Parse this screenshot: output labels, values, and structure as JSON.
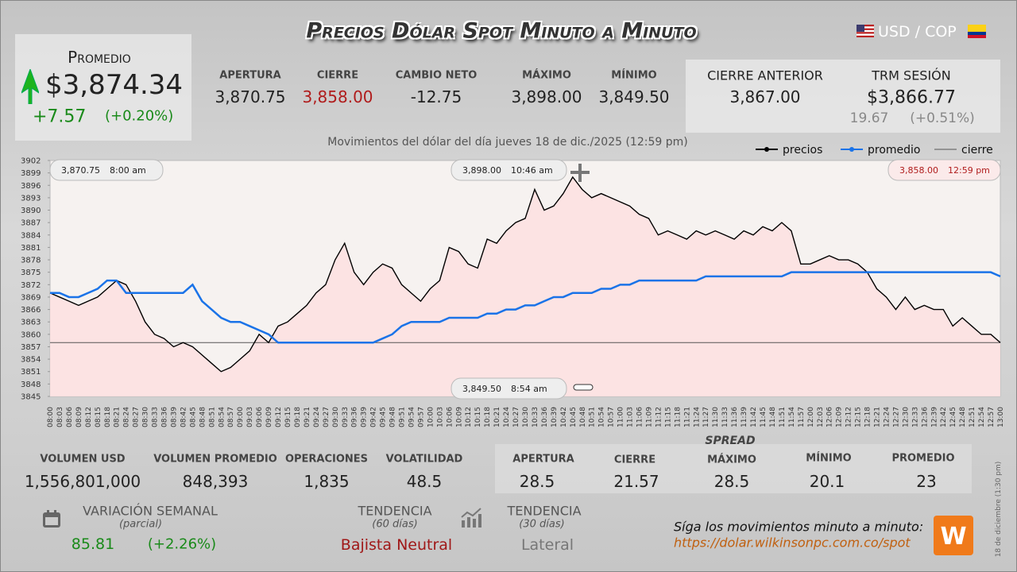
{
  "header": {
    "title": "Precios Dólar Spot Minuto a Minuto",
    "pair": "USD / COP"
  },
  "promedio": {
    "label": "Promedio",
    "value": "$3,874.34",
    "change": "+7.57",
    "pct": "(+0.20%)"
  },
  "stats": [
    {
      "label": "APERTURA",
      "value": "3,870.75"
    },
    {
      "label": "CIERRE",
      "value": "3,858.00"
    },
    {
      "label": "CAMBIO NETO",
      "value": "-12.75"
    },
    {
      "label": "MÁXIMO",
      "value": "3,898.00"
    },
    {
      "label": "MÍNIMO",
      "value": "3,849.50"
    }
  ],
  "cierre_anterior": {
    "label": "CIERRE ANTERIOR",
    "value": "3,867.00"
  },
  "trm": {
    "label": "TRM SESIÓN",
    "value": "$3,866.77",
    "change": "19.67",
    "pct": "(+0.51%)"
  },
  "chart_data": {
    "type": "line",
    "subtitle": "Movimientos del dólar del día jueves 18 de dic./2025 (12:59 pm)",
    "legend": "top-right",
    "categories": [
      "08:00",
      "08:03",
      "08:06",
      "08:09",
      "08:12",
      "08:15",
      "08:18",
      "08:21",
      "08:24",
      "08:27",
      "08:30",
      "08:33",
      "08:36",
      "08:39",
      "08:42",
      "08:45",
      "08:48",
      "08:51",
      "08:54",
      "08:57",
      "09:00",
      "09:03",
      "09:06",
      "09:09",
      "09:12",
      "09:15",
      "09:18",
      "09:21",
      "09:24",
      "09:27",
      "09:30",
      "09:33",
      "09:36",
      "09:39",
      "09:42",
      "09:45",
      "09:48",
      "09:51",
      "09:54",
      "09:57",
      "10:00",
      "10:03",
      "10:06",
      "10:09",
      "10:12",
      "10:15",
      "10:18",
      "10:21",
      "10:24",
      "10:27",
      "10:30",
      "10:33",
      "10:36",
      "10:39",
      "10:42",
      "10:45",
      "10:48",
      "10:51",
      "10:54",
      "10:57",
      "11:00",
      "11:03",
      "11:06",
      "11:09",
      "11:12",
      "11:15",
      "11:18",
      "11:21",
      "11:24",
      "11:27",
      "11:30",
      "11:33",
      "11:36",
      "11:39",
      "11:42",
      "11:45",
      "11:48",
      "11:51",
      "11:54",
      "11:57",
      "12:00",
      "12:03",
      "12:06",
      "12:09",
      "12:12",
      "12:15",
      "12:18",
      "12:21",
      "12:24",
      "12:27",
      "12:30",
      "12:33",
      "12:36",
      "12:39",
      "12:42",
      "12:45",
      "12:48",
      "12:51",
      "12:54",
      "12:57",
      "13:00"
    ],
    "series": [
      {
        "name": "precios",
        "color": "#000000",
        "values": [
          3870,
          3869,
          3868,
          3867,
          3868,
          3869,
          3871,
          3873,
          3872,
          3868,
          3863,
          3860,
          3859,
          3857,
          3858,
          3857,
          3855,
          3853,
          3851,
          3852,
          3854,
          3856,
          3860,
          3858,
          3862,
          3863,
          3865,
          3867,
          3870,
          3872,
          3878,
          3882,
          3875,
          3872,
          3875,
          3877,
          3876,
          3872,
          3870,
          3868,
          3871,
          3873,
          3881,
          3880,
          3877,
          3876,
          3883,
          3882,
          3885,
          3887,
          3888,
          3895,
          3890,
          3891,
          3894,
          3898,
          3895,
          3893,
          3894,
          3893,
          3892,
          3891,
          3889,
          3888,
          3884,
          3885,
          3884,
          3883,
          3885,
          3884,
          3885,
          3884,
          3883,
          3885,
          3884,
          3886,
          3885,
          3887,
          3885,
          3877,
          3877,
          3878,
          3879,
          3878,
          3878,
          3877,
          3875,
          3871,
          3869,
          3866,
          3869,
          3866,
          3867,
          3866,
          3866,
          3862,
          3864,
          3862,
          3860,
          3860,
          3858
        ]
      },
      {
        "name": "promedio",
        "color": "#1a73e8",
        "values": [
          3870,
          3870,
          3869,
          3869,
          3870,
          3871,
          3873,
          3873,
          3870,
          3870,
          3870,
          3870,
          3870,
          3870,
          3870,
          3872,
          3868,
          3866,
          3864,
          3863,
          3863,
          3862,
          3861,
          3860,
          3858,
          3858,
          3858,
          3858,
          3858,
          3858,
          3858,
          3858,
          3858,
          3858,
          3858,
          3859,
          3860,
          3862,
          3863,
          3863,
          3863,
          3863,
          3864,
          3864,
          3864,
          3864,
          3865,
          3865,
          3866,
          3866,
          3867,
          3867,
          3868,
          3869,
          3869,
          3870,
          3870,
          3870,
          3871,
          3871,
          3872,
          3872,
          3873,
          3873,
          3873,
          3873,
          3873,
          3873,
          3873,
          3874,
          3874,
          3874,
          3874,
          3874,
          3874,
          3874,
          3874,
          3874,
          3875,
          3875,
          3875,
          3875,
          3875,
          3875,
          3875,
          3875,
          3875,
          3875,
          3875,
          3875,
          3875,
          3875,
          3875,
          3875,
          3875,
          3875,
          3875,
          3875,
          3875,
          3875,
          3874
        ]
      }
    ],
    "close_line": {
      "name": "cierre",
      "value": 3858,
      "color": "#555555"
    },
    "ylim": [
      3845,
      3902
    ],
    "yticks": [
      3845,
      3848,
      3851,
      3854,
      3857,
      3860,
      3863,
      3866,
      3869,
      3872,
      3875,
      3878,
      3881,
      3884,
      3887,
      3890,
      3893,
      3896,
      3899,
      3902
    ],
    "annotations": [
      {
        "value": "3,870.75",
        "time": "8:00 am"
      },
      {
        "value": "3,898.00",
        "time": "10:46 am"
      },
      {
        "value": "3,858.00",
        "time": "12:59 pm"
      },
      {
        "value": "3,849.50",
        "time": "8:54 am"
      }
    ]
  },
  "bottom_stats": [
    {
      "label": "VOLUMEN USD",
      "value": "1,556,801,000"
    },
    {
      "label": "VOLUMEN PROMEDIO",
      "value": "848,393"
    },
    {
      "label": "OPERACIONES",
      "value": "1,835"
    },
    {
      "label": "VOLATILIDAD",
      "value": "48.5"
    }
  ],
  "spread": {
    "title": "SPREAD",
    "items": [
      {
        "label": "APERTURA",
        "value": "28.5"
      },
      {
        "label": "CIERRE",
        "value": "21.57"
      },
      {
        "label": "MÁXIMO",
        "value": "28.5"
      },
      {
        "label": "MÍNIMO",
        "value": "20.1"
      },
      {
        "label": "PROMEDIO",
        "value": "23"
      }
    ]
  },
  "variacion": {
    "label": "VARIACIÓN SEMANAL",
    "note": "(parcial)",
    "value": "85.81",
    "pct": "(+2.26%)"
  },
  "tendencia_60": {
    "label": "TENDENCIA",
    "note": "(60 días)",
    "value": "Bajista Neutral"
  },
  "tendencia_30": {
    "label": "TENDENCIA",
    "note": "(30 días)",
    "value": "Lateral"
  },
  "footer": {
    "text": "Síga los movimientos minuto a minuto:",
    "url": "https://dolar.wilkinsonpc.com.co/spot",
    "date_note": "18 de diciembre (1:30 pm)"
  }
}
